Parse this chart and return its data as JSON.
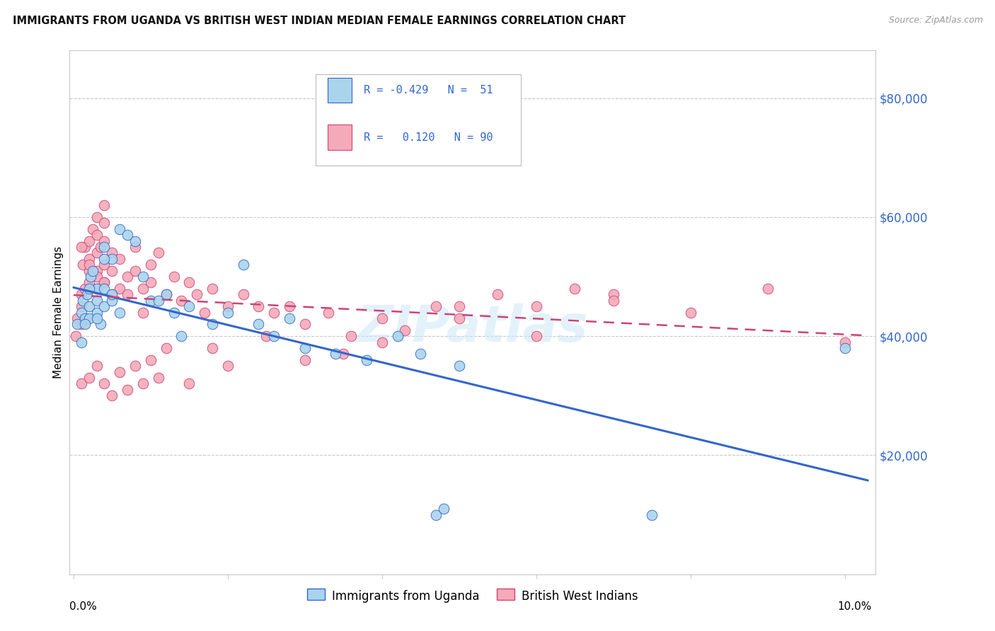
{
  "title": "IMMIGRANTS FROM UGANDA VS BRITISH WEST INDIAN MEDIAN FEMALE EARNINGS CORRELATION CHART",
  "source": "Source: ZipAtlas.com",
  "ylabel": "Median Female Earnings",
  "yticks": [
    20000,
    40000,
    60000,
    80000
  ],
  "ytick_labels": [
    "$20,000",
    "$40,000",
    "$60,000",
    "$80,000"
  ],
  "ylim": [
    0,
    88000
  ],
  "xlim": [
    -0.0005,
    0.104
  ],
  "color_uganda": "#aad4ec",
  "color_bwi": "#f4aab8",
  "color_line_uganda": "#3366cc",
  "color_line_bwi": "#cc4477",
  "background_color": "#ffffff",
  "uganda_x": [
    0.0005,
    0.001,
    0.0012,
    0.0015,
    0.0018,
    0.002,
    0.002,
    0.0022,
    0.0025,
    0.003,
    0.003,
    0.003,
    0.0035,
    0.004,
    0.004,
    0.004,
    0.005,
    0.005,
    0.006,
    0.007,
    0.008,
    0.009,
    0.01,
    0.011,
    0.012,
    0.013,
    0.014,
    0.015,
    0.018,
    0.02,
    0.022,
    0.024,
    0.026,
    0.028,
    0.03,
    0.034,
    0.038,
    0.042,
    0.045,
    0.05,
    0.001,
    0.0015,
    0.002,
    0.003,
    0.004,
    0.005,
    0.006,
    0.047,
    0.048,
    0.075,
    0.1
  ],
  "uganda_y": [
    42000,
    44000,
    46000,
    43000,
    47000,
    45000,
    43000,
    50000,
    51000,
    48000,
    46000,
    44000,
    42000,
    55000,
    48000,
    45000,
    53000,
    46000,
    58000,
    57000,
    56000,
    50000,
    46000,
    46000,
    47000,
    44000,
    40000,
    45000,
    42000,
    44000,
    52000,
    42000,
    40000,
    43000,
    38000,
    37000,
    36000,
    40000,
    37000,
    35000,
    39000,
    42000,
    48000,
    43000,
    53000,
    47000,
    44000,
    10000,
    11000,
    10000,
    38000
  ],
  "bwi_x": [
    0.0003,
    0.0005,
    0.001,
    0.001,
    0.001,
    0.0012,
    0.0015,
    0.0015,
    0.002,
    0.002,
    0.002,
    0.002,
    0.0025,
    0.003,
    0.003,
    0.003,
    0.003,
    0.003,
    0.0035,
    0.004,
    0.004,
    0.004,
    0.004,
    0.004,
    0.005,
    0.005,
    0.006,
    0.006,
    0.007,
    0.007,
    0.008,
    0.008,
    0.009,
    0.009,
    0.01,
    0.01,
    0.011,
    0.012,
    0.013,
    0.014,
    0.015,
    0.016,
    0.017,
    0.018,
    0.02,
    0.022,
    0.024,
    0.026,
    0.028,
    0.03,
    0.033,
    0.036,
    0.04,
    0.043,
    0.047,
    0.05,
    0.055,
    0.06,
    0.065,
    0.07,
    0.001,
    0.002,
    0.003,
    0.004,
    0.005,
    0.006,
    0.007,
    0.008,
    0.009,
    0.01,
    0.011,
    0.012,
    0.015,
    0.018,
    0.02,
    0.025,
    0.03,
    0.035,
    0.04,
    0.05,
    0.06,
    0.07,
    0.08,
    0.09,
    0.001,
    0.002,
    0.003,
    0.004,
    0.005,
    0.1
  ],
  "bwi_y": [
    40000,
    43000,
    47000,
    45000,
    42000,
    52000,
    55000,
    48000,
    56000,
    53000,
    51000,
    49000,
    58000,
    60000,
    57000,
    54000,
    51000,
    48000,
    55000,
    62000,
    59000,
    56000,
    52000,
    49000,
    54000,
    51000,
    53000,
    48000,
    50000,
    47000,
    55000,
    51000,
    48000,
    44000,
    52000,
    49000,
    54000,
    47000,
    50000,
    46000,
    49000,
    47000,
    44000,
    48000,
    45000,
    47000,
    45000,
    44000,
    45000,
    42000,
    44000,
    40000,
    43000,
    41000,
    45000,
    43000,
    47000,
    45000,
    48000,
    47000,
    32000,
    33000,
    35000,
    32000,
    30000,
    34000,
    31000,
    35000,
    32000,
    36000,
    33000,
    38000,
    32000,
    38000,
    35000,
    40000,
    36000,
    37000,
    39000,
    45000,
    40000,
    46000,
    44000,
    48000,
    55000,
    52000,
    50000,
    49000,
    47000,
    39000
  ]
}
